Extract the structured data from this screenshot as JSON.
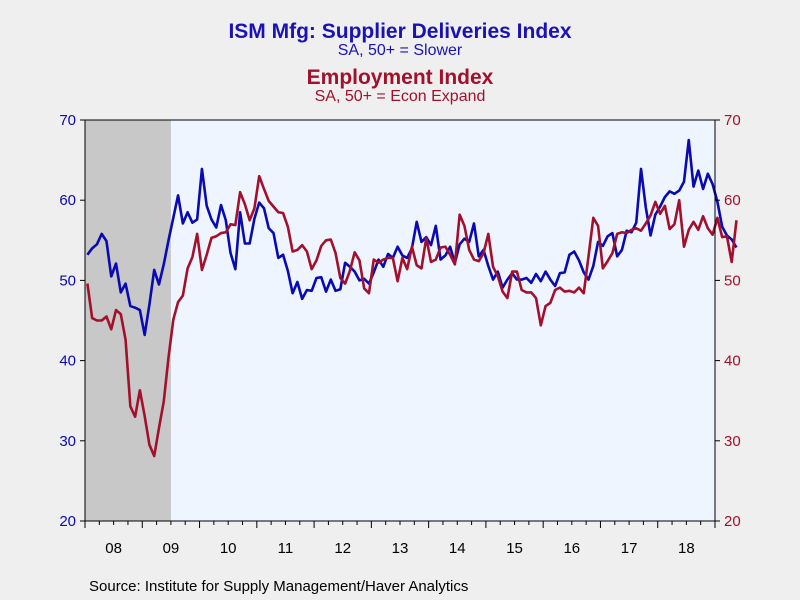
{
  "chart_data": {
    "type": "line",
    "title": "ISM Mfg: Supplier Deliveries Index",
    "subtitle": "SA, 50+ = Slower",
    "title2": "Employment Index",
    "subtitle2": "SA, 50+ = Econ Expand",
    "x_tick_labels": [
      "08",
      "09",
      "10",
      "11",
      "12",
      "13",
      "14",
      "15",
      "16",
      "17",
      "18"
    ],
    "ylim": [
      20,
      70
    ],
    "yticks": [
      20,
      30,
      40,
      50,
      60,
      70
    ],
    "recession_shade": {
      "start": "2008-01",
      "end": "2009-06",
      "color": "#c8c8c8"
    },
    "plot_background": "#eef5ff",
    "series": [
      {
        "name": "ISM Mfg: Supplier Deliveries Index",
        "color": "#0a0ab4",
        "axis": "left",
        "start": "2008-01",
        "values": [
          53.2,
          54.0,
          54.5,
          55.8,
          54.9,
          50.5,
          52.1,
          48.5,
          49.6,
          46.8,
          46.6,
          46.3,
          43.2,
          47.0,
          51.3,
          49.5,
          52.0,
          55.0,
          57.8,
          60.6,
          57.1,
          58.5,
          57.2,
          57.6,
          63.9,
          59.3,
          57.6,
          56.6,
          59.4,
          57.5,
          53.4,
          51.4,
          58.5,
          54.6,
          54.6,
          57.7,
          59.7,
          59.0,
          56.5,
          55.9,
          52.8,
          53.2,
          51.2,
          48.4,
          49.8,
          47.7,
          48.8,
          48.7,
          50.3,
          50.4,
          48.6,
          50.1,
          48.7,
          48.9,
          52.2,
          51.7,
          51.1,
          50.0,
          50.2,
          49.6,
          51.0,
          52.6,
          51.7,
          53.3,
          52.8,
          54.2,
          53.1,
          52.8,
          54.0,
          57.3,
          54.8,
          55.4,
          54.4,
          56.8,
          52.6,
          53.1,
          54.2,
          52.2,
          54.5,
          55.2,
          54.8,
          57.1,
          53.0,
          53.8,
          51.8,
          50.1,
          51.1,
          49.1,
          50.1,
          50.9,
          50.1,
          50.1,
          50.3,
          49.7,
          50.8,
          49.9,
          51.1,
          50.1,
          49.3,
          50.9,
          51.0,
          53.2,
          53.6,
          52.5,
          51.0,
          50.1,
          51.8,
          54.8,
          54.3,
          55.5,
          55.9,
          53.0,
          53.8,
          56.2,
          56.0,
          57.2,
          63.9,
          59.1,
          55.6,
          58.2,
          59.2,
          60.4,
          61.1,
          60.8,
          61.2,
          62.3,
          67.5,
          61.7,
          63.7,
          61.4,
          63.3,
          62.0,
          59.8,
          56.7,
          55.6,
          55.1,
          54.1
        ]
      },
      {
        "name": "Employment Index",
        "color": "#a3102c",
        "axis": "right",
        "start": "2008-01",
        "values": [
          49.6,
          45.3,
          45.0,
          45.0,
          45.5,
          43.9,
          46.3,
          45.8,
          42.6,
          34.3,
          33.0,
          36.3,
          33.1,
          29.5,
          28.1,
          31.6,
          34.9,
          40.4,
          45.1,
          47.3,
          48.1,
          51.5,
          52.9,
          55.8,
          51.3,
          53.2,
          55.3,
          55.5,
          55.9,
          56.0,
          57.0,
          56.9,
          61.0,
          59.5,
          57.5,
          59.0,
          63.0,
          61.4,
          59.9,
          59.2,
          58.5,
          58.4,
          56.7,
          53.6,
          53.8,
          54.4,
          53.6,
          51.4,
          52.5,
          54.3,
          55.0,
          55.1,
          53.4,
          50.3,
          49.6,
          51.2,
          53.5,
          52.5,
          49.0,
          48.4,
          52.6,
          52.2,
          52.6,
          52.8,
          52.8,
          49.9,
          52.8,
          51.4,
          54.2,
          51.9,
          51.5,
          55.3,
          52.3,
          52.6,
          54.1,
          54.2,
          53.2,
          52.0,
          58.2,
          56.8,
          53.8,
          52.6,
          52.4,
          53.4,
          55.8,
          51.7,
          50.5,
          48.6,
          47.8,
          51.1,
          51.1,
          48.8,
          48.5,
          48.5,
          47.8,
          44.4,
          46.8,
          47.2,
          48.8,
          49.1,
          48.6,
          48.7,
          48.5,
          49.1,
          48.4,
          53.0,
          57.8,
          56.8,
          51.5,
          52.4,
          53.4,
          55.8,
          56.0,
          55.9,
          56.3,
          56.5,
          56.2,
          57.1,
          58.1,
          59.8,
          58.3,
          59.3,
          56.4,
          57.0,
          60.0,
          54.2,
          56.3,
          57.3,
          56.3,
          58.0,
          56.5,
          55.7,
          57.8,
          55.4,
          55.5,
          52.3,
          57.5
        ]
      }
    ]
  },
  "source": "Source:  Institute for Supply Management/Haver Analytics"
}
